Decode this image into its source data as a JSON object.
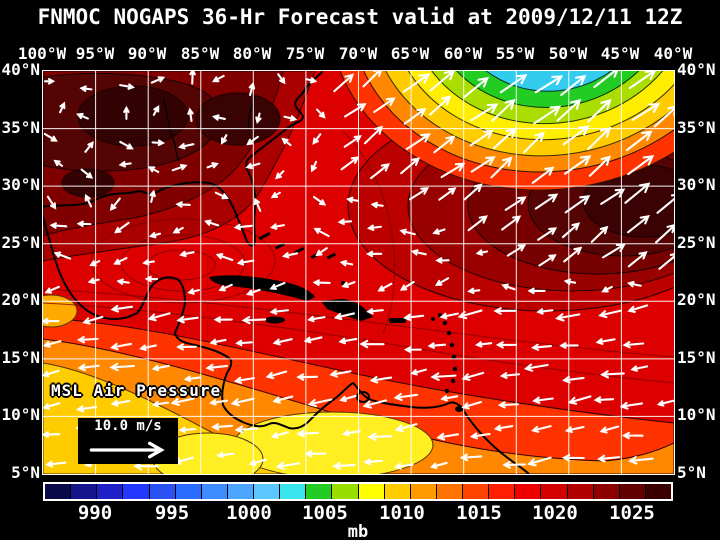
{
  "title": "FNMOC NOGAPS 36-Hr Forecast valid at 2009/12/11 12Z",
  "axes": {
    "lon": [
      "100°W",
      "95°W",
      "90°W",
      "85°W",
      "80°W",
      "75°W",
      "70°W",
      "65°W",
      "60°W",
      "55°W",
      "50°W",
      "45°W",
      "40°W"
    ],
    "lat": [
      "40°N",
      "35°N",
      "30°N",
      "25°N",
      "20°N",
      "15°N",
      "10°N",
      "5°N"
    ]
  },
  "map": {
    "field_label": "MSL Air Pressure",
    "wind_scale": {
      "label": "10.0 m/s"
    }
  },
  "colorbar": {
    "unit": "mb",
    "ticks": [
      "990",
      "995",
      "1000",
      "1005",
      "1010",
      "1015",
      "1020",
      "1025"
    ],
    "colors": [
      "#0a0a4a",
      "#14148c",
      "#2020c8",
      "#2238ff",
      "#2a52f2",
      "#2a6cff",
      "#3c8cff",
      "#4aa6ff",
      "#5ac8ff",
      "#3ae6ee",
      "#22cc22",
      "#9ade00",
      "#ffff00",
      "#ffcc00",
      "#ff9900",
      "#ff7300",
      "#ff4400",
      "#ff1e00",
      "#ee0000",
      "#d40000",
      "#b20000",
      "#8c0000",
      "#600000",
      "#3a0000"
    ]
  },
  "chart_data": {
    "type": "heatmap",
    "title": "FNMOC NOGAPS 36-Hr Forecast valid at 2009/12/11 12Z",
    "field": "MSL Air Pressure",
    "unit": "mb",
    "colorbar_ticks": [
      990,
      995,
      1000,
      1005,
      1010,
      1015,
      1020,
      1025
    ],
    "lon_range_deg_west": [
      100,
      40
    ],
    "lat_range_deg_north": [
      5,
      40
    ],
    "grid_interval_deg": 5,
    "wind_reference_vector": "10.0 m/s",
    "features": [
      "High pressure ridge (~1024+ mb, darkest shades) over the south-central/southeastern United States",
      "Strong subtropical high (~1022-1026 mb) in the central Atlantic near 27-32N 45-55W",
      "Deep low north of the map edge near 40N 52W with tight gradient: bands down to ~995 mb (cyan/green/yellow) in the top-right corner",
      "Strong southwest-to-northeast flow (jet) across the western Atlantic toward the low",
      "Easterly trade winds (arrows pointing west) south of ~20N across the Caribbean",
      "Lower pressure (~1008-1012 mb, orange/yellow) over Central America, Colombia and the far southern map edge"
    ]
  }
}
